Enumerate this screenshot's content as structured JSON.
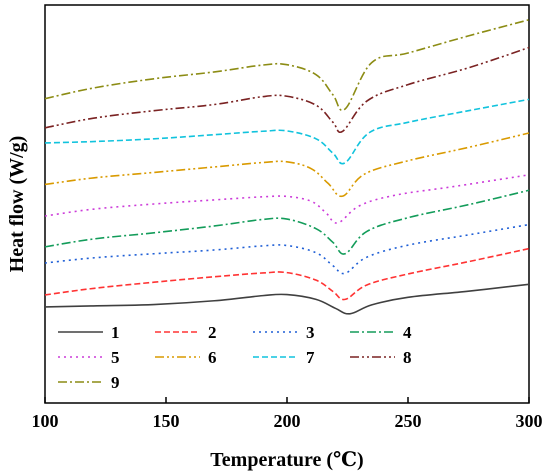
{
  "chart_data": {
    "type": "line",
    "title": "",
    "xlabel": "Temperature (℃)",
    "ylabel": "Heat flow (W/g)",
    "xlim": [
      100,
      300
    ],
    "x_ticks": [
      100,
      150,
      200,
      250,
      300
    ],
    "y_ticks_shown": false,
    "grid": false,
    "legend": {
      "placement": "bottom-left",
      "columns": 4
    },
    "series": [
      {
        "name": "1",
        "color": "#404040",
        "dash": "solid",
        "x": [
          100,
          120,
          145,
          170,
          190,
          200,
          212,
          220,
          226,
          235,
          250,
          275,
          300
        ],
        "y": [
          0.0,
          0.3,
          0.7,
          1.8,
          3.3,
          3.6,
          2.2,
          -0.4,
          -2.0,
          0.6,
          2.8,
          4.6,
          6.6
        ]
      },
      {
        "name": "2",
        "color": "#ff3333",
        "dash": "dashed",
        "x": [
          100,
          120,
          145,
          170,
          190,
          200,
          212,
          219,
          224,
          233,
          250,
          275,
          300
        ],
        "y": [
          3.5,
          5.4,
          7.2,
          8.8,
          9.9,
          10.0,
          7.8,
          4.5,
          2.2,
          6.4,
          9.6,
          13.2,
          17.0
        ]
      },
      {
        "name": "3",
        "color": "#1f5fd6",
        "dash": "dotted",
        "x": [
          100,
          120,
          145,
          170,
          190,
          200,
          212,
          219,
          224,
          233,
          250,
          275,
          300
        ],
        "y": [
          12.8,
          14.3,
          15.5,
          16.6,
          17.8,
          17.9,
          15.8,
          12.0,
          9.8,
          14.5,
          18.0,
          21.0,
          24.0
        ]
      },
      {
        "name": "4",
        "color": "#139c5a",
        "dash": "dash-dot",
        "x": [
          100,
          120,
          145,
          170,
          190,
          200,
          212,
          219,
          224,
          233,
          250,
          275,
          300
        ],
        "y": [
          17.5,
          19.8,
          21.6,
          23.6,
          25.5,
          25.6,
          22.8,
          18.8,
          15.5,
          22.0,
          26.0,
          29.8,
          34.0
        ]
      },
      {
        "name": "5",
        "color": "#cc3bd9",
        "dash": "dotted",
        "x": [
          100,
          120,
          145,
          170,
          190,
          200,
          210,
          216,
          221,
          230,
          245,
          270,
          300
        ],
        "y": [
          26.5,
          28.5,
          30.0,
          31.2,
          32.1,
          32.2,
          30.8,
          27.5,
          24.5,
          29.5,
          32.6,
          35.2,
          38.5
        ]
      },
      {
        "name": "6",
        "color": "#d99a00",
        "dash": "dash-dot-dot",
        "x": [
          100,
          120,
          145,
          170,
          190,
          200,
          210,
          217,
          223,
          232,
          250,
          275,
          300
        ],
        "y": [
          35.7,
          37.6,
          39.2,
          40.8,
          42.1,
          42.3,
          40.3,
          36.0,
          32.3,
          38.7,
          42.6,
          46.5,
          50.7
        ]
      },
      {
        "name": "7",
        "color": "#11c3dd",
        "dash": "dashed",
        "x": [
          100,
          120,
          145,
          170,
          190,
          200,
          212,
          219,
          224,
          234,
          250,
          275,
          300
        ],
        "y": [
          47.8,
          48.2,
          49.0,
          50.2,
          51.2,
          51.3,
          49.0,
          44.8,
          42.0,
          50.8,
          53.8,
          57.2,
          60.5
        ]
      },
      {
        "name": "8",
        "color": "#7a2222",
        "dash": "dash-dot-dot",
        "x": [
          100,
          120,
          145,
          170,
          190,
          200,
          212,
          219,
          223,
          233,
          250,
          275,
          300
        ],
        "y": [
          52.2,
          55.0,
          57.2,
          59.0,
          61.3,
          61.4,
          58.8,
          53.8,
          51.2,
          60.0,
          64.8,
          69.7,
          75.6
        ]
      },
      {
        "name": "9",
        "color": "#8c8c14",
        "dash": "dash-dot",
        "x": [
          100,
          120,
          145,
          170,
          190,
          200,
          212,
          219,
          224,
          235,
          250,
          275,
          300
        ],
        "y": [
          60.7,
          63.8,
          66.5,
          68.5,
          70.5,
          70.6,
          67.7,
          61.8,
          57.7,
          71.2,
          74.0,
          79.0,
          83.7
        ]
      }
    ]
  }
}
